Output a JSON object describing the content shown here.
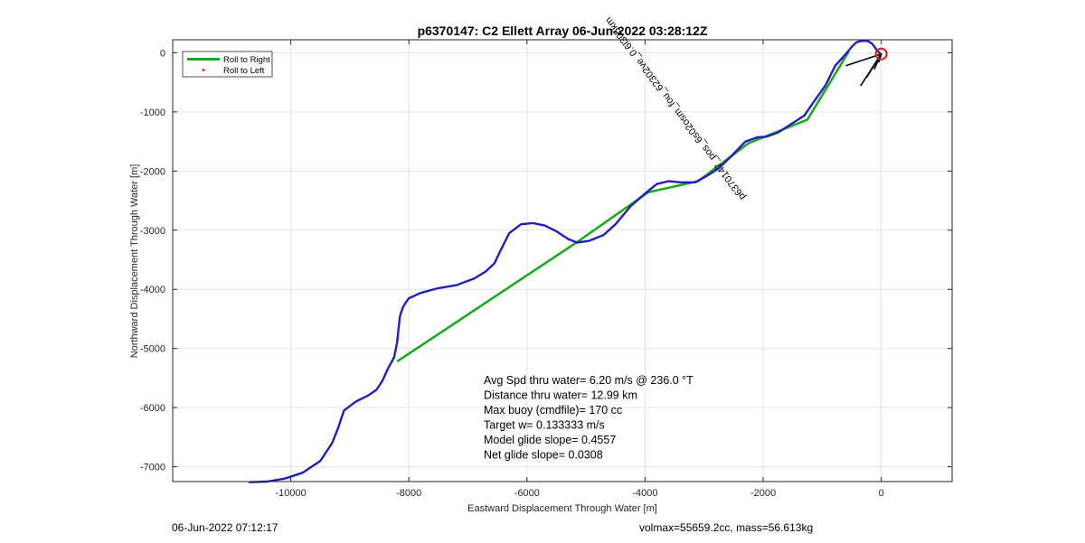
{
  "chart_data": {
    "type": "line",
    "title": "p6370147: C2 Ellett Array 06-Jun-2022 03:28:12Z",
    "xlabel": "Eastward Displacement Through Water [m]",
    "ylabel": "Northward Displacement Through Water [m]",
    "xlim": [
      -12000,
      1200
    ],
    "ylim": [
      -7250,
      220
    ],
    "xticks": [
      -10000,
      -8000,
      -6000,
      -4000,
      -2000,
      0
    ],
    "xtick_labels": [
      "-10000",
      "-8000",
      "-6000",
      "-4000",
      "-2000",
      "0"
    ],
    "yticks": [
      0,
      -1000,
      -2000,
      -3000,
      -4000,
      -5000,
      -6000,
      -7000
    ],
    "ytick_labels": [
      "0",
      "-1000",
      "-2000",
      "-3000",
      "-4000",
      "-5000",
      "-6000",
      "-7000"
    ],
    "grid": true,
    "legend_position": "top-left",
    "legend": [
      {
        "label": "Roll to Right",
        "color": "#1fa81f",
        "marker": "line"
      },
      {
        "label": "Roll to Left",
        "color": "#e02020",
        "marker": "dot"
      }
    ],
    "series": [
      {
        "name": "Roll to Right",
        "color": "#1fa81f",
        "x": [
          -8200,
          -5150,
          -3950,
          -3100,
          -2250,
          -1250,
          -550
        ],
        "y": [
          -5220,
          -3200,
          -2360,
          -2170,
          -1530,
          -1130,
          20
        ]
      },
      {
        "color": "#1f1fbf",
        "x": [
          -10700,
          -10400,
          -10100,
          -9800,
          -9500,
          -9300,
          -9200,
          -9100,
          -8900,
          -8700,
          -8550,
          -8450,
          -8350,
          -8250,
          -8200,
          -8180,
          -8150,
          -8100,
          -8050,
          -8000,
          -7800,
          -7500,
          -7200,
          -6900,
          -6700,
          -6550,
          -6450,
          -6300,
          -6100,
          -5900,
          -5700,
          -5500,
          -5300,
          -5150,
          -4950,
          -4700,
          -4500,
          -4250,
          -4000,
          -3800,
          -3600,
          -3400,
          -3150,
          -2950,
          -2750,
          -2550,
          -2300,
          -2100,
          -1950,
          -1750,
          -1500,
          -1300,
          -1150,
          -950,
          -780,
          -600,
          -500,
          -430,
          -400,
          -330,
          -230,
          -150,
          -80,
          0
        ],
        "y": [
          -7260,
          -7250,
          -7200,
          -7100,
          -6900,
          -6600,
          -6350,
          -6050,
          -5900,
          -5800,
          -5700,
          -5550,
          -5330,
          -5150,
          -4900,
          -4700,
          -4450,
          -4300,
          -4220,
          -4150,
          -4060,
          -3980,
          -3930,
          -3820,
          -3700,
          -3560,
          -3350,
          -3050,
          -2900,
          -2880,
          -2920,
          -3020,
          -3150,
          -3210,
          -3180,
          -3080,
          -2900,
          -2600,
          -2380,
          -2220,
          -2170,
          -2190,
          -2190,
          -2080,
          -1950,
          -1760,
          -1500,
          -1430,
          -1420,
          -1350,
          -1190,
          -1060,
          -840,
          -560,
          -220,
          -20,
          100,
          170,
          185,
          200,
          200,
          150,
          50,
          -30
        ]
      }
    ],
    "near_surface_tracks": {
      "color": "#000000",
      "x": [
        0,
        -600,
        0,
        -350,
        0,
        -250,
        0,
        -120,
        0,
        -40
      ],
      "y": [
        -20,
        -220,
        -20,
        -560,
        -20,
        -420,
        -20,
        -280,
        -20,
        -160
      ]
    },
    "endpoint_marker": {
      "x": 0,
      "y": -20,
      "color": "#d21f1f"
    },
    "annotation": "p6370147_pos_6s02osm_fou_62302ve_0.6l305km",
    "stats": [
      "Avg Spd thru water=  6.20 m/s @ 236.0 °T",
      "Distance thru water= 12.99 km",
      "Max buoy (cmdfile)= 170 cc",
      "Target w= 0.133333 m/s",
      "Model glide slope= 0.4557",
      "Net glide slope= 0.0308"
    ]
  },
  "footer": {
    "left": "06-Jun-2022 07:12:17",
    "right": "volmax=55659.2cc, mass=56.613kg"
  }
}
